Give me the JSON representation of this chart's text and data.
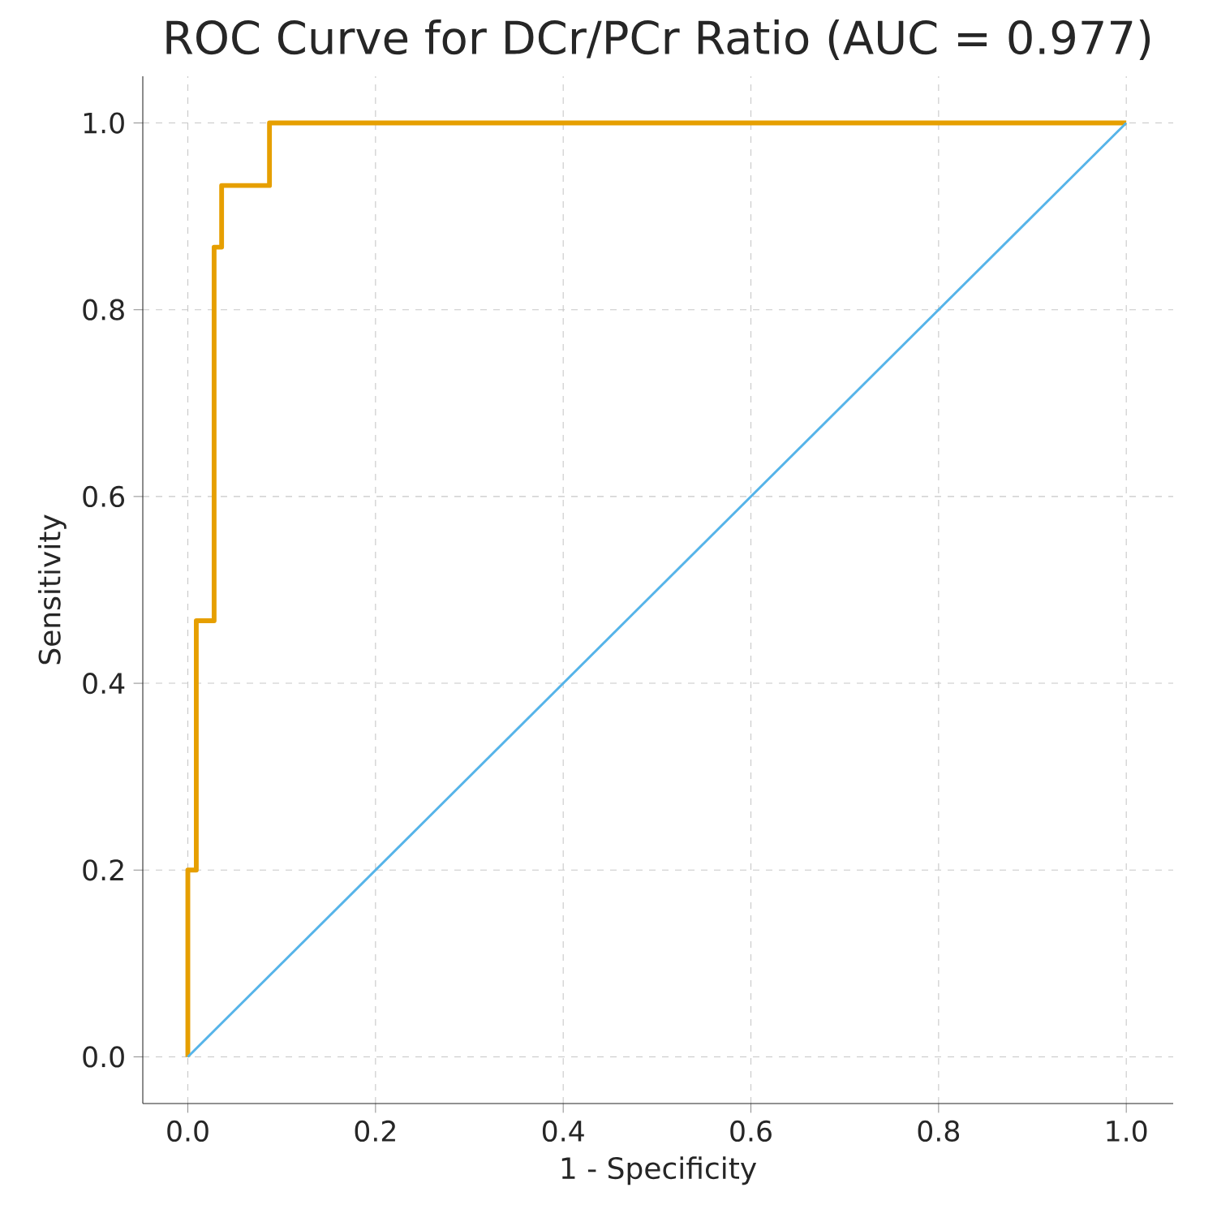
{
  "chart_data": {
    "type": "line",
    "title": "ROC Curve for DCr/PCr Ratio (AUC = 0.977)",
    "xlabel": "1 - Specificity",
    "ylabel": "Sensitivity",
    "series": [
      {
        "color": "#e69f00",
        "x": [
          0,
          0,
          0.009,
          0.009,
          0.028,
          0.028,
          0.036,
          0.036,
          0.087,
          0.087,
          1
        ],
        "values": [
          0,
          0.2,
          0.2,
          0.467,
          0.467,
          0.867,
          0.867,
          0.933,
          0.933,
          1,
          1
        ]
      },
      {
        "color": "#56b4e9",
        "x": [
          0,
          1
        ],
        "values": [
          0,
          1
        ]
      }
    ],
    "xlim": [
      -0.048,
      1.05
    ],
    "ylim": [
      -0.05,
      1.05
    ],
    "xticks": [
      {
        "value": 0,
        "label": "0.0"
      },
      0.2,
      0.4,
      0.6,
      0.8,
      {
        "value": 1,
        "label": "1.0"
      }
    ],
    "yticks": [
      {
        "value": 0,
        "label": "0.0"
      },
      0.2,
      0.4,
      0.6,
      0.8,
      {
        "value": 1,
        "label": "1.0"
      }
    ],
    "grid": true
  }
}
